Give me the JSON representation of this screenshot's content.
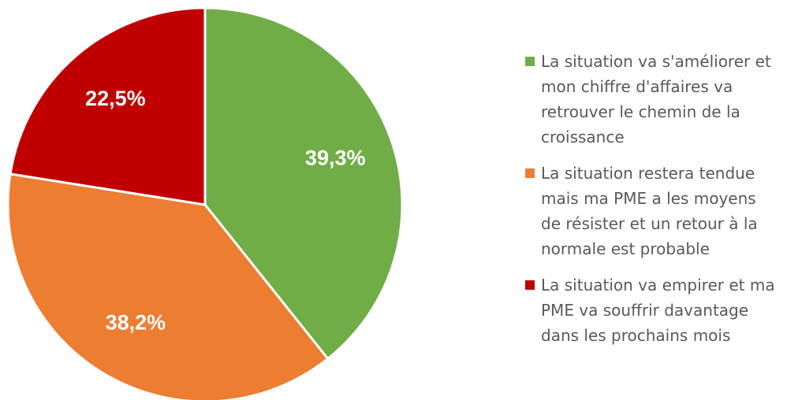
{
  "chart_data": {
    "type": "pie",
    "series": [
      {
        "name": "La situation va s'améliorer et mon chiffre d'affaires va retrouver le chemin de la croissance",
        "color": "#70ad47"
      },
      {
        "name": "La situation restera tendue mais ma PME a les moyens de résister et un retour à la normale est probable",
        "color": "#ed7d31"
      },
      {
        "name": "La situation va empirer et ma PME va souffrir davantage dans les prochains mois",
        "color": "#c00000"
      }
    ],
    "values": [
      39.3,
      38.2,
      22.5
    ],
    "value_labels": [
      "39,3%",
      "38,2%",
      "22,5%"
    ],
    "legend": "right"
  }
}
